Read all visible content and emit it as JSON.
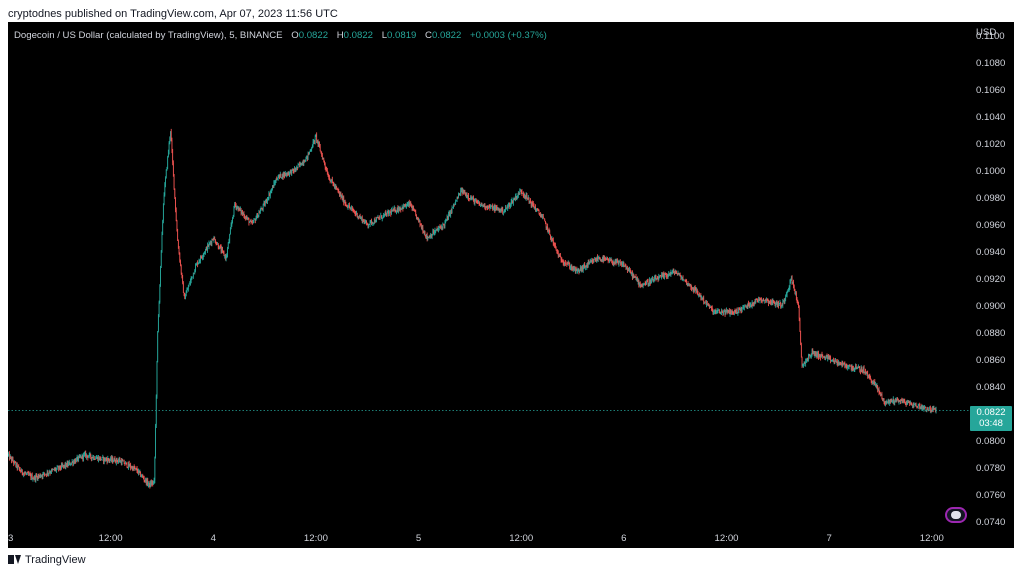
{
  "header": {
    "published": "cryptodnes published on TradingView.com, Apr 07, 2023 11:56 UTC"
  },
  "legend": {
    "symbol": "Dogecoin / US Dollar (calculated by TradingView), 5, BINANCE",
    "o_label": "O",
    "o_value": "0.0822",
    "h_label": "H",
    "h_value": "0.0822",
    "l_label": "L",
    "l_value": "0.0819",
    "c_label": "C",
    "c_value": "0.0822",
    "change": "+0.0003 (+0.37%)"
  },
  "price_badge": {
    "price": "0.0822",
    "countdown": "03:48"
  },
  "footer": {
    "brand": "TradingView"
  },
  "colors": {
    "up": "#26a69a",
    "down": "#ef5350",
    "background": "#000000",
    "axis_text": "#d1d4dc"
  },
  "chart_data": {
    "type": "candlestick",
    "currency": "USD",
    "ylim": [
      0.0735,
      0.111
    ],
    "y_ticks": [
      "0.1100",
      "0.1080",
      "0.1060",
      "0.1040",
      "0.1020",
      "0.1000",
      "0.0980",
      "0.0960",
      "0.0940",
      "0.0920",
      "0.0900",
      "0.0880",
      "0.0860",
      "0.0840",
      "0.0800",
      "0.0780",
      "0.0760",
      "0.0740"
    ],
    "x_ticks": [
      "3",
      "12:00",
      "4",
      "12:00",
      "5",
      "12:00",
      "6",
      "12:00",
      "7",
      "12:00"
    ],
    "x_tick_time_hours": [
      0,
      12,
      24,
      36,
      48,
      60,
      72,
      84,
      96,
      108
    ],
    "x_range_hours": [
      0,
      112
    ],
    "last_price": 0.0822,
    "price_path": [
      [
        0,
        0.0789
      ],
      [
        1.5,
        0.0777
      ],
      [
        3,
        0.0772
      ],
      [
        5,
        0.0777
      ],
      [
        7,
        0.0782
      ],
      [
        9,
        0.0789
      ],
      [
        11,
        0.0786
      ],
      [
        13,
        0.0785
      ],
      [
        15,
        0.0778
      ],
      [
        16.5,
        0.0767
      ],
      [
        17.1,
        0.0769
      ],
      [
        17.5,
        0.088
      ],
      [
        18.2,
        0.098
      ],
      [
        19.0,
        0.103
      ],
      [
        19.8,
        0.095
      ],
      [
        20.6,
        0.0905
      ],
      [
        22,
        0.093
      ],
      [
        24,
        0.095
      ],
      [
        25.5,
        0.0935
      ],
      [
        26.5,
        0.0975
      ],
      [
        28.5,
        0.096
      ],
      [
        30,
        0.0975
      ],
      [
        31.5,
        0.0995
      ],
      [
        33.5,
        0.1
      ],
      [
        35,
        0.101
      ],
      [
        36,
        0.1025
      ],
      [
        37.5,
        0.0995
      ],
      [
        39.5,
        0.0975
      ],
      [
        42,
        0.096
      ],
      [
        45,
        0.097
      ],
      [
        47,
        0.0975
      ],
      [
        49,
        0.095
      ],
      [
        51,
        0.096
      ],
      [
        53,
        0.0985
      ],
      [
        55,
        0.0975
      ],
      [
        58,
        0.097
      ],
      [
        60,
        0.0985
      ],
      [
        62.5,
        0.0965
      ],
      [
        64.5,
        0.0935
      ],
      [
        66.5,
        0.0925
      ],
      [
        69,
        0.0935
      ],
      [
        72,
        0.093
      ],
      [
        74,
        0.0915
      ],
      [
        76,
        0.092
      ],
      [
        78,
        0.0925
      ],
      [
        80.5,
        0.091
      ],
      [
        82.5,
        0.0895
      ],
      [
        85,
        0.0895
      ],
      [
        88,
        0.0905
      ],
      [
        90.5,
        0.09
      ],
      [
        91.6,
        0.092
      ],
      [
        92.4,
        0.09
      ],
      [
        92.8,
        0.0855
      ],
      [
        94,
        0.0865
      ],
      [
        96,
        0.086
      ],
      [
        98,
        0.0855
      ],
      [
        100,
        0.0852
      ],
      [
        101.5,
        0.084
      ],
      [
        102.5,
        0.0828
      ],
      [
        104,
        0.083
      ],
      [
        106,
        0.0826
      ],
      [
        108.5,
        0.0822
      ]
    ]
  }
}
